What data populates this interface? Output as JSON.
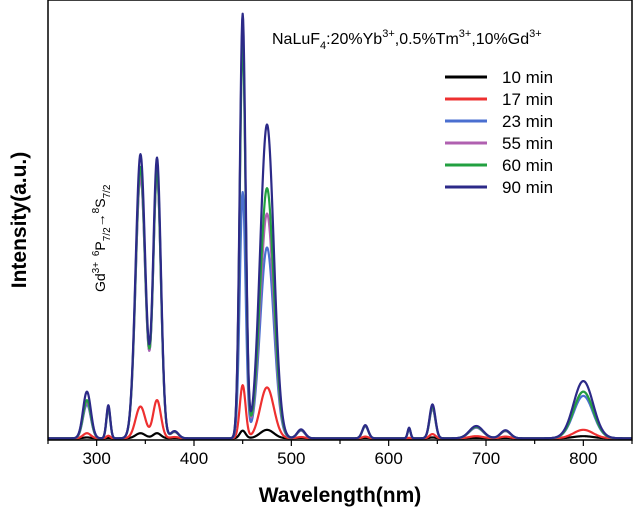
{
  "chart_data": {
    "type": "line",
    "title": "NaLuF4:20%Yb3+,0.5%Tm3+,10%Gd3+",
    "title_parts": {
      "host": "NaLuF",
      "host_sub": "4",
      "yb": ":20%Yb",
      "yb_sup": "3+",
      "tm": ",0.5%Tm",
      "tm_sup": "3+",
      "gd": ",10%Gd",
      "gd_sup": "3+"
    },
    "xlabel": "Wavelength(nm)",
    "ylabel": "Intensity(a.u.)",
    "xlim": [
      250,
      850
    ],
    "ylim": [
      0,
      1.0
    ],
    "xticks": [
      300,
      400,
      500,
      600,
      700,
      800
    ],
    "grid": false,
    "legend_position": "top-right",
    "annotation": {
      "text": "Gd3+ 6P7/2→8S7/2",
      "gd": "Gd",
      "gd_sup": "3+",
      "from_sup": "6",
      "from": "P",
      "from_sub": "7/2",
      "arrow": "→",
      "to_sup": "8",
      "to": "S",
      "to_sub": "7/2"
    },
    "peaks_nm": [
      290,
      312,
      345,
      362,
      380,
      450,
      475,
      510,
      576,
      621,
      645,
      690,
      720,
      800
    ],
    "series": [
      {
        "name": "10 min",
        "color": "#000000",
        "values": [
          0.002,
          0.001,
          0.012,
          0.012,
          0.001,
          0.018,
          0.02,
          0.001,
          0.001,
          0.0,
          0.002,
          0.001,
          0.001,
          0.005
        ]
      },
      {
        "name": "17 min",
        "color": "#ee3030",
        "values": [
          0.012,
          0.006,
          0.075,
          0.09,
          0.003,
          0.125,
          0.12,
          0.003,
          0.004,
          0.001,
          0.01,
          0.005,
          0.004,
          0.02
        ]
      },
      {
        "name": "23 min",
        "color": "#4a6fd0",
        "values": [
          0.08,
          0.068,
          0.62,
          0.62,
          0.015,
          0.58,
          0.45,
          0.018,
          0.028,
          0.022,
          0.07,
          0.025,
          0.017,
          0.1
        ]
      },
      {
        "name": "55 min",
        "color": "#b060b0",
        "values": [
          0.085,
          0.072,
          0.62,
          0.62,
          0.015,
          0.95,
          0.53,
          0.019,
          0.029,
          0.023,
          0.072,
          0.026,
          0.017,
          0.11
        ]
      },
      {
        "name": "60 min",
        "color": "#22a040",
        "values": [
          0.09,
          0.074,
          0.64,
          0.63,
          0.016,
          0.935,
          0.59,
          0.02,
          0.03,
          0.024,
          0.075,
          0.027,
          0.018,
          0.11
        ]
      },
      {
        "name": "90 min",
        "color": "#2c2a88",
        "values": [
          0.11,
          0.078,
          0.67,
          0.66,
          0.017,
          1.0,
          0.74,
          0.021,
          0.031,
          0.025,
          0.08,
          0.029,
          0.019,
          0.135
        ]
      }
    ]
  }
}
